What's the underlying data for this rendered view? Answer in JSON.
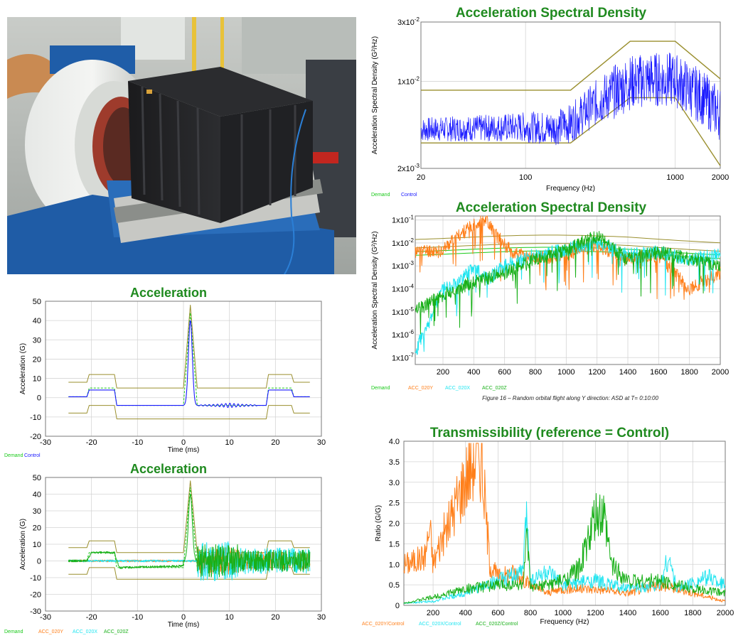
{
  "colors": {
    "title_green": "#1f8a1f",
    "demand": "#9a8f2e",
    "demand_label": "#19c919",
    "control": "#1a1aff",
    "acc_020y": "#ff7f1a",
    "acc_020x": "#22e5f0",
    "acc_020z": "#19b019"
  },
  "photo": {
    "description": "Black electronics box mounted on shaker table with white/blue electrodynamic shaker"
  },
  "chart_data": [
    {
      "id": "asd_top",
      "type": "line",
      "title": "Acceleration Spectral Density",
      "xlabel": "Frequency (Hz)",
      "ylabel": "Acceleration Spectral Density (G²/Hz)",
      "xscale": "log",
      "yscale": "log",
      "xlim": [
        20,
        2000
      ],
      "ylim": [
        0.002,
        0.03
      ],
      "xticks": [
        "20",
        "100",
        "1000",
        "2000"
      ],
      "yticks_html": [
        [
          "3x10",
          "-2"
        ],
        [
          "1x10",
          "-2"
        ],
        [
          "2x10",
          "-3"
        ]
      ],
      "legend": [
        "Demand",
        "Control"
      ],
      "series": [
        {
          "name": "Demand",
          "role": "upper",
          "x": [
            20,
            200,
            500,
            1000,
            2000
          ],
          "y": [
            0.0085,
            0.0085,
            0.021,
            0.021,
            0.0105
          ]
        },
        {
          "name": "Demand",
          "role": "target",
          "x": [
            20,
            200,
            500,
            1000,
            2000
          ],
          "y": [
            0.0043,
            0.0043,
            0.0105,
            0.0105,
            0.0053
          ]
        },
        {
          "name": "Demand",
          "role": "lower",
          "x": [
            20,
            200,
            500,
            1000,
            2000
          ],
          "y": [
            0.0032,
            0.0032,
            0.0074,
            0.0074,
            0.0021
          ]
        },
        {
          "name": "Control",
          "x": [
            20,
            50,
            100,
            150,
            200,
            300,
            500,
            700,
            1000,
            1500,
            2000
          ],
          "y": [
            0.0041,
            0.0042,
            0.0043,
            0.0042,
            0.0046,
            0.0068,
            0.0098,
            0.0104,
            0.0103,
            0.0075,
            0.0055
          ]
        }
      ]
    },
    {
      "id": "asd_mid",
      "type": "line",
      "title": "Acceleration Spectral Density",
      "xlabel": "Frequency (Hz)",
      "ylabel": "Acceleration Spectral Density (G²/Hz)",
      "yscale": "log",
      "xlim": [
        20,
        2000
      ],
      "ylim": [
        5e-08,
        0.15
      ],
      "xticks": [
        "200",
        "400",
        "600",
        "800",
        "1000",
        "1200",
        "1400",
        "1600",
        "1800",
        "2000"
      ],
      "yticks_html": [
        [
          "1x10",
          "-1"
        ],
        [
          "1x10",
          "-2"
        ],
        [
          "1x10",
          "-3"
        ],
        [
          "1x10",
          "-4"
        ],
        [
          "1x10",
          "-5"
        ],
        [
          "1x10",
          "-6"
        ],
        [
          "1x10",
          "-7"
        ]
      ],
      "legend": [
        "Demand",
        "ACC_020Y",
        "ACC_020X",
        "ACC_020Z"
      ],
      "caption": "Figure 16 – Random orbital flight along Y direction: ASD at T= 0:10:00",
      "series": [
        {
          "name": "ACC_020Y",
          "x": [
            20,
            200,
            300,
            400,
            480,
            550,
            650,
            800,
            1000,
            1200,
            1400,
            1600,
            1800,
            2000
          ],
          "y": [
            0.004,
            0.005,
            0.02,
            0.06,
            0.12,
            0.02,
            0.004,
            0.002,
            0.003,
            0.008,
            0.002,
            0.003,
            0.0001,
            0.0005
          ]
        },
        {
          "name": "ACC_020X",
          "x": [
            20,
            100,
            200,
            300,
            400,
            500,
            600,
            800,
            1000,
            1200,
            1400,
            1600,
            1800,
            2000
          ],
          "y": [
            1e-07,
            2e-06,
            0.0001,
            0.0002,
            0.0008,
            0.0003,
            0.001,
            0.003,
            0.005,
            0.01,
            0.003,
            0.004,
            0.002,
            0.003
          ]
        },
        {
          "name": "ACC_020Z",
          "x": [
            20,
            100,
            200,
            300,
            400,
            500,
            600,
            800,
            1000,
            1200,
            1400,
            1600,
            1800,
            2000
          ],
          "y": [
            1e-05,
            2e-05,
            5e-05,
            0.0001,
            0.0002,
            0.0003,
            0.0005,
            0.002,
            0.005,
            0.02,
            0.002,
            0.004,
            0.002,
            0.001
          ]
        }
      ]
    },
    {
      "id": "acc_top",
      "type": "line",
      "title": "Acceleration",
      "xlabel": "Time (ms)",
      "ylabel": "Acceleration (G)",
      "xlim": [
        -30,
        30
      ],
      "ylim": [
        -20,
        50
      ],
      "xticks": [
        "-30",
        "-20",
        "-10",
        "0",
        "10",
        "20",
        "30"
      ],
      "yticks": [
        "50",
        "40",
        "30",
        "20",
        "10",
        "0",
        "-10",
        "-20"
      ],
      "legend": [
        "Demand",
        "Control"
      ],
      "series": [
        {
          "name": "Demand",
          "role": "upper",
          "x": [
            -25,
            -21,
            -20.5,
            -15,
            -14.5,
            0,
            1.5,
            3,
            18,
            18.5,
            23.5,
            24,
            27.5
          ],
          "y": [
            8,
            8,
            12,
            12,
            5,
            5,
            48,
            5,
            5,
            12,
            12,
            8,
            8
          ]
        },
        {
          "name": "Demand",
          "role": "lower",
          "x": [
            -25,
            -21,
            -20.5,
            -15,
            -14.5,
            0,
            1.5,
            3,
            18,
            18.5,
            23.5,
            24,
            27.5
          ],
          "y": [
            -8,
            -8,
            -4,
            -4,
            -11,
            -11,
            -11,
            -11,
            -11,
            -4,
            -4,
            -8,
            -8
          ]
        },
        {
          "name": "Control",
          "x": [
            -25,
            -21,
            -20.5,
            -15,
            -14.5,
            0,
            0.5,
            1.5,
            2.5,
            3,
            18,
            18.5,
            23.5,
            24,
            27.5
          ],
          "y": [
            0.5,
            0.5,
            4,
            4,
            -4,
            -4,
            10,
            40,
            10,
            -4,
            -4,
            4,
            4,
            0.5,
            0.5
          ]
        }
      ]
    },
    {
      "id": "acc_bot",
      "type": "line",
      "title": "Acceleration",
      "xlabel": "Time (ms)",
      "ylabel": "Acceleration (G)",
      "xlim": [
        -30,
        30
      ],
      "ylim": [
        -30,
        50
      ],
      "xticks": [
        "-30",
        "-20",
        "-10",
        "0",
        "10",
        "20",
        "30"
      ],
      "yticks": [
        "50",
        "40",
        "30",
        "20",
        "10",
        "0",
        "-10",
        "-20",
        "-30"
      ],
      "legend": [
        "Demand",
        "ACC_020Y",
        "ACC_020X",
        "ACC_020Z"
      ],
      "series": [
        {
          "name": "Demand",
          "role": "upper",
          "x": [
            -25,
            -21,
            -20.5,
            -15,
            -14.5,
            0,
            1.5,
            3,
            18,
            18.5,
            23.5,
            24,
            27.5
          ],
          "y": [
            8,
            8,
            12,
            12,
            5,
            5,
            48,
            5,
            5,
            12,
            12,
            8,
            8
          ]
        },
        {
          "name": "Demand",
          "role": "lower",
          "x": [
            -25,
            -21,
            -20.5,
            -15,
            -14.5,
            0,
            1.5,
            3,
            18,
            18.5,
            23.5,
            24,
            27.5
          ],
          "y": [
            -8,
            -8,
            -4,
            -4,
            -11,
            -11,
            -11,
            -11,
            -11,
            -4,
            -4,
            -8,
            -8
          ]
        },
        {
          "name": "ACC_020Z",
          "x": [
            -25,
            -21,
            -20,
            -15,
            -14,
            0,
            0.5,
            1.5,
            2.5,
            3,
            27.5
          ],
          "y": [
            0,
            0,
            5,
            5,
            -4,
            -3,
            10,
            40,
            10,
            0,
            0
          ]
        }
      ]
    },
    {
      "id": "transmissibility",
      "type": "line",
      "title": "Transmissibility (reference = Control)",
      "xlabel": "Frequency (Hz)",
      "ylabel": "Ratio (G/G)",
      "xlim": [
        20,
        2000
      ],
      "ylim": [
        0,
        4
      ],
      "xticks": [
        "200",
        "400",
        "600",
        "800",
        "1000",
        "1200",
        "1400",
        "1600",
        "1800",
        "2000"
      ],
      "yticks": [
        "4.0",
        "3.5",
        "3.0",
        "2.5",
        "2.0",
        "1.5",
        "1.0",
        "0.5",
        "0"
      ],
      "legend": [
        "ACC_020Y/Control",
        "ACC_020X/Control",
        "ACC_020Z/Control"
      ],
      "series": [
        {
          "name": "ACC_020Y/Control",
          "x": [
            20,
            100,
            150,
            180,
            200,
            250,
            300,
            350,
            400,
            450,
            480,
            500,
            550,
            600,
            700,
            800,
            900,
            1000,
            1200,
            1400,
            1600,
            1800,
            2000
          ],
          "y": [
            1.0,
            1.1,
            1.2,
            1.9,
            1.0,
            1.6,
            2.0,
            2.6,
            3.1,
            3.6,
            3.7,
            3.5,
            1.0,
            0.7,
            0.8,
            0.5,
            0.3,
            0.4,
            0.4,
            0.3,
            0.5,
            0.3,
            0.1
          ]
        },
        {
          "name": "ACC_020X/Control",
          "x": [
            20,
            200,
            400,
            600,
            750,
            780,
            800,
            900,
            1000,
            1200,
            1400,
            1600,
            1650,
            1700,
            1900,
            2000
          ],
          "y": [
            0.05,
            0.1,
            0.3,
            0.6,
            0.8,
            2.3,
            0.6,
            0.8,
            0.5,
            0.6,
            0.4,
            0.5,
            1.2,
            0.4,
            0.7,
            0.5
          ]
        },
        {
          "name": "ACC_020Z/Control",
          "x": [
            20,
            200,
            400,
            600,
            750,
            780,
            800,
            1000,
            1100,
            1200,
            1250,
            1300,
            1400,
            1600,
            1800,
            2000
          ],
          "y": [
            0.05,
            0.2,
            0.4,
            0.5,
            0.5,
            1.6,
            0.4,
            0.6,
            0.9,
            2.1,
            2.15,
            1.0,
            0.6,
            0.6,
            0.4,
            0.3
          ]
        }
      ]
    }
  ]
}
